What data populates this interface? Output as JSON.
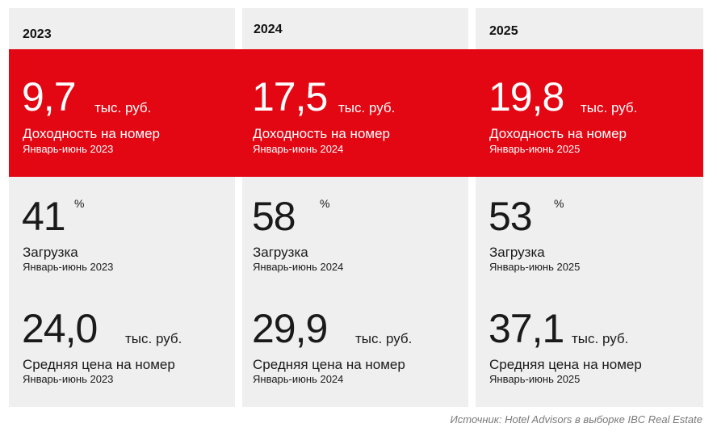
{
  "source": "Источник: Hotel Advisors в выборке IBC Real Estate",
  "columns": [
    {
      "year": "2023",
      "revpar": {
        "value": "9,7",
        "unit": "тыс. руб.",
        "label": "Доходность на номер",
        "period": "Январь-июнь 2023"
      },
      "occupancy": {
        "value": "41",
        "unit": "%",
        "label": "Загрузка",
        "period": "Январь-июнь 2023"
      },
      "adr": {
        "value": "24,0",
        "unit": "тыс. руб.",
        "label": "Средняя цена на номер",
        "period": "Январь-июнь 2023"
      }
    },
    {
      "year": "2024",
      "revpar": {
        "value": "17,5",
        "unit": "тыс. руб.",
        "label": "Доходность на номер",
        "period": "Январь-июнь 2024"
      },
      "occupancy": {
        "value": "58",
        "unit": "%",
        "label": "Загрузка",
        "period": "Январь-июнь 2024"
      },
      "adr": {
        "value": "29,9",
        "unit": "тыс. руб.",
        "label": "Средняя цена на номер",
        "period": "Январь-июнь 2024"
      }
    },
    {
      "year": "2025",
      "revpar": {
        "value": "19,8",
        "unit": "тыс. руб.",
        "label": "Доходность на номер",
        "period": "Январь-июнь 2025"
      },
      "occupancy": {
        "value": "53",
        "unit": "%",
        "label": "Загрузка",
        "period": "Январь-июнь 2025"
      },
      "adr": {
        "value": "37,1",
        "unit": "тыс. руб.",
        "label": "Средняя цена на номер",
        "period": "Январь-июнь 2025"
      }
    }
  ],
  "colors": {
    "accent": "#e30613",
    "panel": "#efefef",
    "text": "#1a1a1a",
    "source": "#7a7a7a"
  }
}
